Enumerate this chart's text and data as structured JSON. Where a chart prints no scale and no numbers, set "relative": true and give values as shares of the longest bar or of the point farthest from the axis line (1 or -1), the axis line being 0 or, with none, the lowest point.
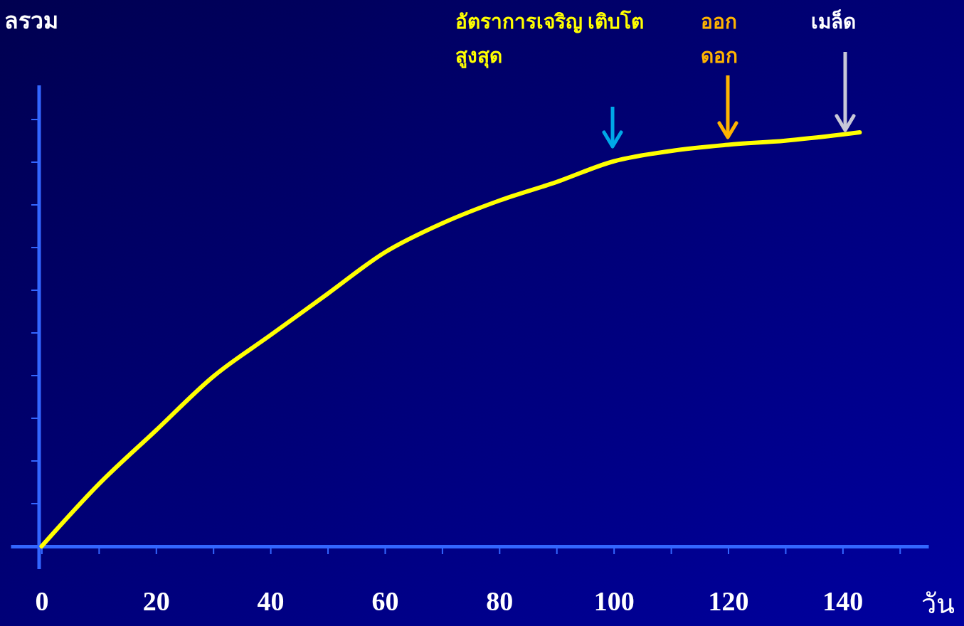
{
  "chart_data": {
    "type": "line",
    "ylabel": "ลรวม",
    "xlabel": "วัน",
    "relative": true,
    "x": [
      0,
      10,
      20,
      30,
      40,
      50,
      60,
      70,
      80,
      90,
      100,
      110,
      120,
      130,
      140,
      143
    ],
    "xlim": [
      -5.4,
      155
    ],
    "xticks": [
      0,
      {
        "value": 10,
        "label": null
      },
      20,
      {
        "value": 30,
        "label": null
      },
      40,
      {
        "value": 50,
        "label": null
      },
      60,
      {
        "value": 70,
        "label": null
      },
      80,
      {
        "value": 90,
        "label": null
      },
      100,
      {
        "value": 110,
        "label": null
      },
      120,
      {
        "value": 130,
        "label": null
      },
      140,
      {
        "value": 150,
        "label": null
      }
    ],
    "series": [
      {
        "color": "#ffff00",
        "values": [
          0,
          0.15,
          0.28,
          0.41,
          0.51,
          0.61,
          0.71,
          0.78,
          0.835,
          0.88,
          0.93,
          0.955,
          0.97,
          0.98,
          0.995,
          1
        ]
      }
    ],
    "annotations": [
      "อัตราการเจริญ เติบโต\nสูงสุด",
      "ออก\nดอก",
      "เมล็ด"
    ],
    "grid": false,
    "legend": false,
    "marker": "none",
    "line_style": "solid"
  }
}
